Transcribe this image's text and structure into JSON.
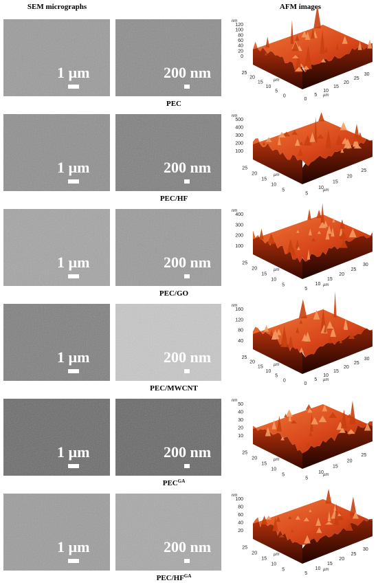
{
  "header": {
    "sem": "SEM micrographs",
    "afm": "AFM images"
  },
  "rows": [
    {
      "label": "PEC",
      "sem_scale": [
        "1 µm",
        "200 nm"
      ],
      "afm": {
        "z_unit": "nm",
        "z_ticks": [
          120,
          100,
          80,
          60,
          40,
          20,
          0
        ],
        "y_unit": "µm",
        "y_ticks": [
          25,
          20,
          15,
          10,
          5,
          0
        ],
        "x_unit": "µm",
        "x_ticks": [
          0,
          5,
          10,
          15,
          20,
          25,
          30
        ]
      }
    },
    {
      "label": "PEC/HF",
      "sem_scale": [
        "1 µm",
        "200 nm"
      ],
      "afm": {
        "z_unit": "nm",
        "z_ticks": [
          500,
          400,
          300,
          200,
          100
        ],
        "y_unit": "µm",
        "y_ticks": [
          25,
          20,
          15,
          10,
          5
        ],
        "x_unit": "µm",
        "x_ticks": [
          5,
          10,
          15,
          20,
          25
        ]
      }
    },
    {
      "label": "PEC/GO",
      "sem_scale": [
        "1 µm",
        "200 nm"
      ],
      "afm": {
        "z_unit": "nm",
        "z_ticks": [
          400,
          300,
          200,
          100
        ],
        "y_unit": "µm",
        "y_ticks": [
          25,
          20,
          15,
          10,
          5
        ],
        "x_unit": "µm",
        "x_ticks": [
          5,
          10,
          15,
          20,
          25,
          30
        ]
      }
    },
    {
      "label": "PEC/MWCNT",
      "sem_scale": [
        "1 µm",
        "200 nm"
      ],
      "afm": {
        "z_unit": "nm",
        "z_ticks": [
          160,
          120,
          80,
          40
        ],
        "y_unit": "µm",
        "y_ticks": [
          25,
          20,
          15,
          10,
          5,
          0
        ],
        "x_unit": "µm",
        "x_ticks": [
          0,
          5,
          10,
          15,
          20,
          25,
          30
        ]
      }
    },
    {
      "label": "PEC",
      "label_sup": "GA",
      "sem_scale": [
        "1 µm",
        "200 nm"
      ],
      "afm": {
        "z_unit": "nm",
        "z_ticks": [
          50,
          40,
          30,
          20,
          10
        ],
        "y_unit": "µm",
        "y_ticks": [
          25,
          20,
          15,
          10,
          5
        ],
        "x_unit": "µm",
        "x_ticks": [
          5,
          10,
          15,
          20,
          25
        ]
      }
    },
    {
      "label": "PEC/HF",
      "label_sup": "GA",
      "sem_scale": [
        "1 µm",
        "200 nm"
      ],
      "afm": {
        "z_unit": "nm",
        "z_ticks": [
          100,
          80,
          60,
          40,
          20
        ],
        "y_unit": "µm",
        "y_ticks": [
          25,
          20,
          15,
          10,
          5
        ],
        "x_unit": "µm",
        "x_ticks": [
          5,
          10,
          15,
          20,
          25,
          30
        ]
      }
    }
  ]
}
